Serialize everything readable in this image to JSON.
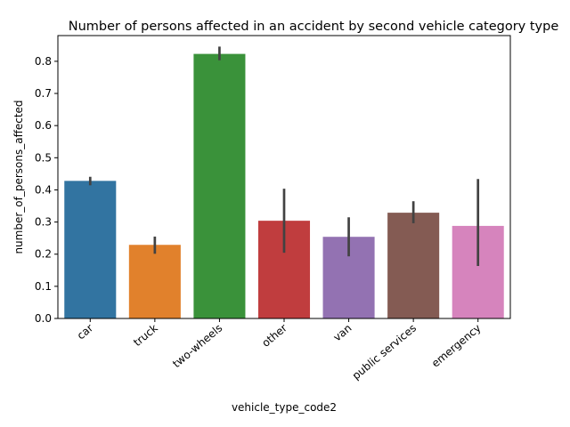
{
  "chart_data": {
    "type": "bar",
    "title": "Number of persons affected in an accident by second vehicle category type",
    "xlabel": "vehicle_type_code2",
    "ylabel": "number_of_persons_affected",
    "ylim": [
      0,
      0.88
    ],
    "yticks": [
      "0.0",
      "0.1",
      "0.2",
      "0.3",
      "0.4",
      "0.5",
      "0.6",
      "0.7",
      "0.8"
    ],
    "grid": false,
    "categories": [
      "car",
      "truck",
      "two-wheels",
      "other",
      "van",
      "public services",
      "emergency"
    ],
    "values": [
      0.428,
      0.229,
      0.823,
      0.304,
      0.254,
      0.329,
      0.288
    ],
    "error_low": [
      0.418,
      0.205,
      0.807,
      0.208,
      0.197,
      0.3,
      0.167
    ],
    "error_high": [
      0.437,
      0.251,
      0.842,
      0.4,
      0.311,
      0.361,
      0.43
    ],
    "colors": [
      "#3274a1",
      "#e1812c",
      "#3a923a",
      "#c03d3e",
      "#9372b2",
      "#845b53",
      "#d684bd"
    ],
    "error_color": "#424242"
  }
}
